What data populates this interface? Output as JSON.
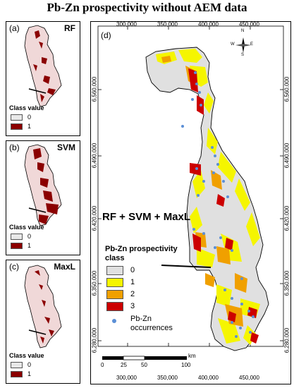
{
  "title": "Pb-Zn prospectivity without AEM data",
  "small_panels": [
    {
      "tag": "(a)",
      "method": "RF",
      "legend_title": "Class value",
      "classes": [
        "0",
        "1"
      ]
    },
    {
      "tag": "(b)",
      "method": "SVM",
      "legend_title": "Class value",
      "classes": [
        "0",
        "1"
      ]
    },
    {
      "tag": "(c)",
      "method": "MaxL",
      "legend_title": "Class value",
      "classes": [
        "0",
        "1"
      ]
    }
  ],
  "main_panel": {
    "tag": "(d)",
    "overlay_label": "RF + SVM + MaxL",
    "x_ticks": [
      "300,000",
      "350,000",
      "400,000",
      "450,000"
    ],
    "y_ticks": [
      "6,560,000",
      "6,490,000",
      "6,420,000",
      "6,350,000",
      "6,280,000"
    ],
    "legend": {
      "title": "Pb-Zn prospectivity class",
      "classes": [
        {
          "label": "0",
          "color": "#e0e0e0"
        },
        {
          "label": "1",
          "color": "#f5f500"
        },
        {
          "label": "2",
          "color": "#f0a000"
        },
        {
          "label": "3",
          "color": "#cc0000"
        }
      ],
      "occurrence_label": "Pb-Zn occurrences",
      "occurrence_color": "#5b8fd6"
    },
    "scale": {
      "labels": [
        "0",
        "25",
        "50",
        "100"
      ],
      "unit": "km"
    },
    "compass": {
      "n": "N",
      "s": "S",
      "e": "E",
      "w": "W"
    }
  },
  "colors": {
    "class0": "#e0e0e0",
    "class1_small": "#8b0000",
    "outline": "#000000"
  }
}
